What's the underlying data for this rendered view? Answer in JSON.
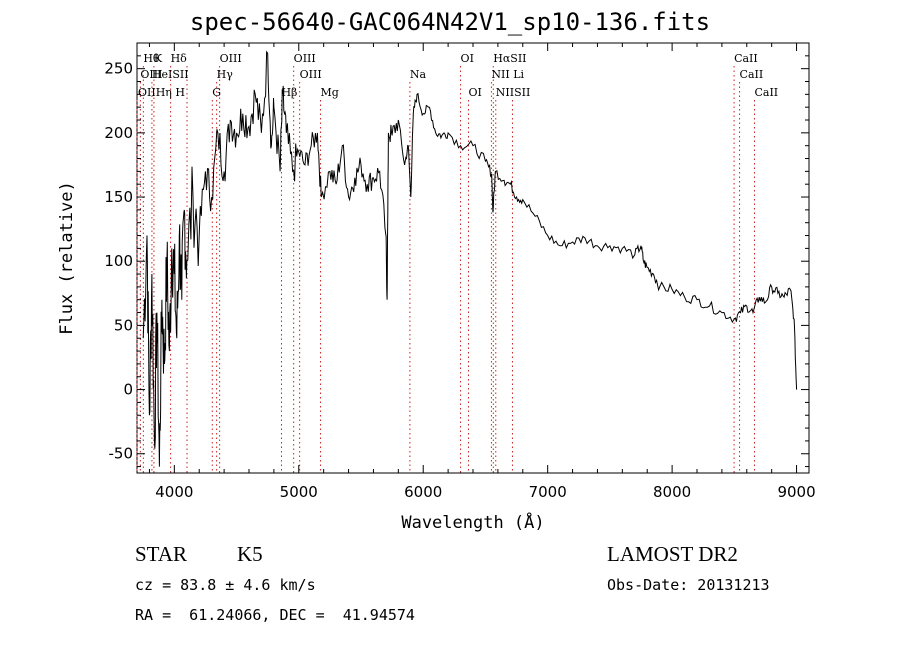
{
  "chart_data": {
    "type": "line",
    "title": "spec-56640-GAC064N42V1_sp10-136.fits",
    "xlabel": "Wavelength (Å)",
    "ylabel": "Flux (relative)",
    "xlim": [
      3700,
      9100
    ],
    "ylim": [
      -65,
      270
    ],
    "x_ticks": [
      "4000",
      "5000",
      "6000",
      "7000",
      "8000",
      "9000"
    ],
    "y_ticks": [
      "-50",
      "0",
      "50",
      "100",
      "150",
      "200",
      "250"
    ],
    "grid": false,
    "series": [
      {
        "color": "#000000",
        "points": [
          [
            3750,
            40
          ],
          [
            3780,
            120
          ],
          [
            3800,
            -20
          ],
          [
            3820,
            90
          ],
          [
            3840,
            -40
          ],
          [
            3860,
            60
          ],
          [
            3880,
            -60
          ],
          [
            3900,
            70
          ],
          [
            3920,
            20
          ],
          [
            3940,
            100
          ],
          [
            3960,
            30
          ],
          [
            3980,
            110
          ],
          [
            4000,
            90
          ],
          [
            4020,
            40
          ],
          [
            4040,
            120
          ],
          [
            4060,
            70
          ],
          [
            4080,
            140
          ],
          [
            4100,
            100
          ],
          [
            4150,
            150
          ],
          [
            4200,
            120
          ],
          [
            4250,
            170
          ],
          [
            4300,
            150
          ],
          [
            4350,
            200
          ],
          [
            4400,
            170
          ],
          [
            4450,
            210
          ],
          [
            4500,
            200
          ],
          [
            4550,
            215
          ],
          [
            4600,
            205
          ],
          [
            4650,
            230
          ],
          [
            4700,
            200
          ],
          [
            4750,
            262
          ],
          [
            4780,
            190
          ],
          [
            4800,
            220
          ],
          [
            4850,
            170
          ],
          [
            4870,
            230
          ],
          [
            4900,
            200
          ],
          [
            4950,
            170
          ],
          [
            5000,
            185
          ],
          [
            5050,
            175
          ],
          [
            5100,
            190
          ],
          [
            5150,
            200
          ],
          [
            5180,
            150
          ],
          [
            5250,
            170
          ],
          [
            5300,
            160
          ],
          [
            5350,
            190
          ],
          [
            5400,
            150
          ],
          [
            5450,
            165
          ],
          [
            5500,
            175
          ],
          [
            5550,
            160
          ],
          [
            5600,
            165
          ],
          [
            5650,
            170
          ],
          [
            5700,
            120
          ],
          [
            5710,
            70
          ],
          [
            5720,
            200
          ],
          [
            5750,
            198
          ],
          [
            5800,
            210
          ],
          [
            5850,
            175
          ],
          [
            5880,
            190
          ],
          [
            5900,
            150
          ],
          [
            5920,
            215
          ],
          [
            5950,
            230
          ],
          [
            6000,
            215
          ],
          [
            6050,
            220
          ],
          [
            6100,
            200
          ],
          [
            6150,
            198
          ],
          [
            6200,
            200
          ],
          [
            6300,
            190
          ],
          [
            6400,
            190
          ],
          [
            6500,
            178
          ],
          [
            6550,
            168
          ],
          [
            6560,
            138
          ],
          [
            6580,
            170
          ],
          [
            6650,
            163
          ],
          [
            6700,
            160
          ],
          [
            6750,
            150
          ],
          [
            6800,
            148
          ],
          [
            6900,
            135
          ],
          [
            7000,
            120
          ],
          [
            7100,
            112
          ],
          [
            7200,
            115
          ],
          [
            7300,
            118
          ],
          [
            7400,
            112
          ],
          [
            7500,
            112
          ],
          [
            7600,
            110
          ],
          [
            7700,
            105
          ],
          [
            7750,
            112
          ],
          [
            7770,
            100
          ],
          [
            7800,
            95
          ],
          [
            7850,
            90
          ],
          [
            7900,
            80
          ],
          [
            8000,
            78
          ],
          [
            8100,
            72
          ],
          [
            8200,
            70
          ],
          [
            8300,
            65
          ],
          [
            8400,
            60
          ],
          [
            8500,
            55
          ],
          [
            8550,
            60
          ],
          [
            8600,
            65
          ],
          [
            8650,
            60
          ],
          [
            8700,
            72
          ],
          [
            8750,
            68
          ],
          [
            8800,
            80
          ],
          [
            8850,
            75
          ],
          [
            8900,
            72
          ],
          [
            8950,
            78
          ],
          [
            8980,
            55
          ],
          [
            9000,
            0
          ]
        ]
      }
    ],
    "lines": [
      {
        "x": 3751,
        "row": 0,
        "label": "Hθ"
      },
      {
        "x": 3836,
        "row": 0,
        "label": "K"
      },
      {
        "x": 3970,
        "row": 0,
        "label": "Hδ"
      },
      {
        "x": 4102,
        "row": 0,
        "label": ""
      },
      {
        "x": 4364,
        "row": 0,
        "label": "OIII"
      },
      {
        "x": 4959,
        "row": 0,
        "label": "OIII"
      },
      {
        "x": 6300,
        "row": 0,
        "label": "OI"
      },
      {
        "x": 6563,
        "row": 0,
        "label": "HαSII"
      },
      {
        "x": 8498,
        "row": 0,
        "label": "CaII"
      },
      {
        "x": 3727,
        "row": 1,
        "label": "OIII"
      },
      {
        "x": 3820,
        "row": 1,
        "label": "HeISII"
      },
      {
        "x": 4340,
        "row": 1,
        "label": "Hγ"
      },
      {
        "x": 5007,
        "row": 1,
        "label": "OIII"
      },
      {
        "x": 5893,
        "row": 1,
        "label": "Na"
      },
      {
        "x": 6548,
        "row": 1,
        "label": "NII Li"
      },
      {
        "x": 8542,
        "row": 1,
        "label": "CaII"
      },
      {
        "x": 3700,
        "row": 2,
        "label": "OIIHη H"
      },
      {
        "x": 4305,
        "row": 2,
        "label": "G"
      },
      {
        "x": 4861,
        "row": 2,
        "label": "Hβ"
      },
      {
        "x": 5175,
        "row": 2,
        "label": "Mg"
      },
      {
        "x": 6364,
        "row": 2,
        "label": "OI"
      },
      {
        "x": 6583,
        "row": 2,
        "label": "NIISII"
      },
      {
        "x": 6717,
        "row": 2,
        "label": ""
      },
      {
        "x": 8662,
        "row": 2,
        "label": "CaII"
      }
    ]
  },
  "info": {
    "class": "STAR",
    "subclass": "K5",
    "survey": "LAMOST DR2",
    "cz": "cz = 83.8 ± 4.6 km/s",
    "obsdate": "Obs-Date: 20131213",
    "coords": "RA =  61.24066, DEC =  41.94574"
  }
}
